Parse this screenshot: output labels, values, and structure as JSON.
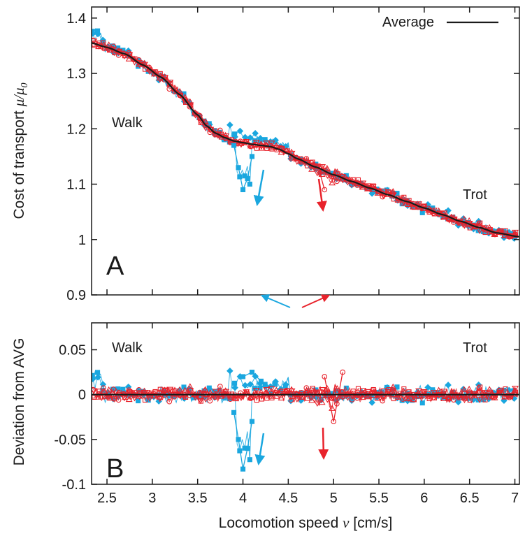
{
  "colors": {
    "blue": "#1aa7df",
    "red": "#e8222b",
    "average": "#1a1a1a",
    "axis": "#1a1a1a"
  },
  "xaxis": {
    "label_prefix": "Locomotion speed ",
    "label_var": "v",
    "label_suffix": " [cm/s]",
    "range": [
      2.33,
      7.05
    ],
    "ticks": [
      2.5,
      3,
      3.5,
      4,
      4.5,
      5,
      5.5,
      6,
      6.5,
      7
    ],
    "tick_labels": [
      "2.5",
      "3",
      "3.5",
      "4",
      "4.5",
      "5",
      "5.5",
      "6",
      "6.5",
      "7"
    ]
  },
  "panel_a": {
    "letter": "A",
    "ylabel_prefix": "Cost of transport  ",
    "ylabel_math": "μ/μ",
    "ylabel_sub": "0",
    "range": [
      0.9,
      1.42
    ],
    "ticks": [
      0.9,
      1,
      1.1,
      1.2,
      1.3,
      1.4
    ],
    "tick_labels": [
      "0.9",
      "1",
      "1.1",
      "1.2",
      "1.3",
      "1.4"
    ],
    "legend_label": "Average",
    "legend_position": "top-right",
    "left_annotation": "Walk",
    "right_annotation": "Trot"
  },
  "panel_b": {
    "letter": "B",
    "ylabel": "Deviation from AVG",
    "range": [
      -0.1,
      0.08
    ],
    "ticks": [
      -0.1,
      -0.05,
      0,
      0.05
    ],
    "tick_labels": [
      "-0.1",
      "-0.05",
      "0",
      "0.05"
    ],
    "left_annotation": "Walk",
    "right_annotation": "Trot"
  },
  "chart_data": [
    {
      "type": "line",
      "panel": "A",
      "xlabel": "Locomotion speed v [cm/s]",
      "ylabel": "Cost of transport μ/μ0",
      "xlim": [
        2.33,
        7.05
      ],
      "ylim": [
        0.9,
        1.42
      ],
      "series": [
        {
          "name": "Average",
          "color": "#1a1a1a",
          "x": [
            2.33,
            2.5,
            2.7,
            2.9,
            3.1,
            3.3,
            3.5,
            3.6,
            3.7,
            3.8,
            3.9,
            4.0,
            4.1,
            4.2,
            4.3,
            4.4,
            4.5,
            4.6,
            4.8,
            5.0,
            5.2,
            5.4,
            5.6,
            5.8,
            6.0,
            6.2,
            6.4,
            6.6,
            6.8,
            7.05
          ],
          "y": [
            1.355,
            1.347,
            1.335,
            1.315,
            1.293,
            1.262,
            1.225,
            1.205,
            1.192,
            1.184,
            1.178,
            1.175,
            1.172,
            1.17,
            1.168,
            1.163,
            1.155,
            1.146,
            1.131,
            1.117,
            1.105,
            1.093,
            1.081,
            1.069,
            1.057,
            1.045,
            1.033,
            1.022,
            1.012,
            1.005
          ]
        }
      ],
      "events": [
        {
          "color": "#1aa7df",
          "x": [
            3.9,
            3.95,
            4.0,
            4.05,
            4.1
          ],
          "y": [
            1.17,
            1.13,
            1.09,
            1.11,
            1.15
          ]
        },
        {
          "color": "#e8222b",
          "x": [
            4.85,
            4.9
          ],
          "y": [
            1.12,
            1.09
          ]
        }
      ]
    },
    {
      "type": "line",
      "panel": "B",
      "xlabel": "Locomotion speed v [cm/s]",
      "ylabel": "Deviation from AVG",
      "xlim": [
        2.33,
        7.05
      ],
      "ylim": [
        -0.1,
        0.08
      ],
      "series": [
        {
          "color": "#1a1a1a",
          "x": [
            2.33,
            7.05
          ],
          "y": [
            0,
            0
          ]
        }
      ],
      "events": [
        {
          "color": "#1aa7df",
          "x": [
            3.9,
            3.95,
            4.0,
            4.05,
            4.1
          ],
          "y": [
            -0.02,
            -0.05,
            -0.083,
            -0.06,
            -0.03
          ]
        },
        {
          "color": "#1aa7df",
          "x": [
            4.0,
            4.1,
            4.2
          ],
          "y": [
            0.02,
            0.025,
            0.015
          ]
        },
        {
          "color": "#e8222b",
          "x": [
            4.9,
            5.0,
            5.1
          ],
          "y": [
            0.02,
            -0.03,
            0.025
          ]
        }
      ]
    }
  ]
}
